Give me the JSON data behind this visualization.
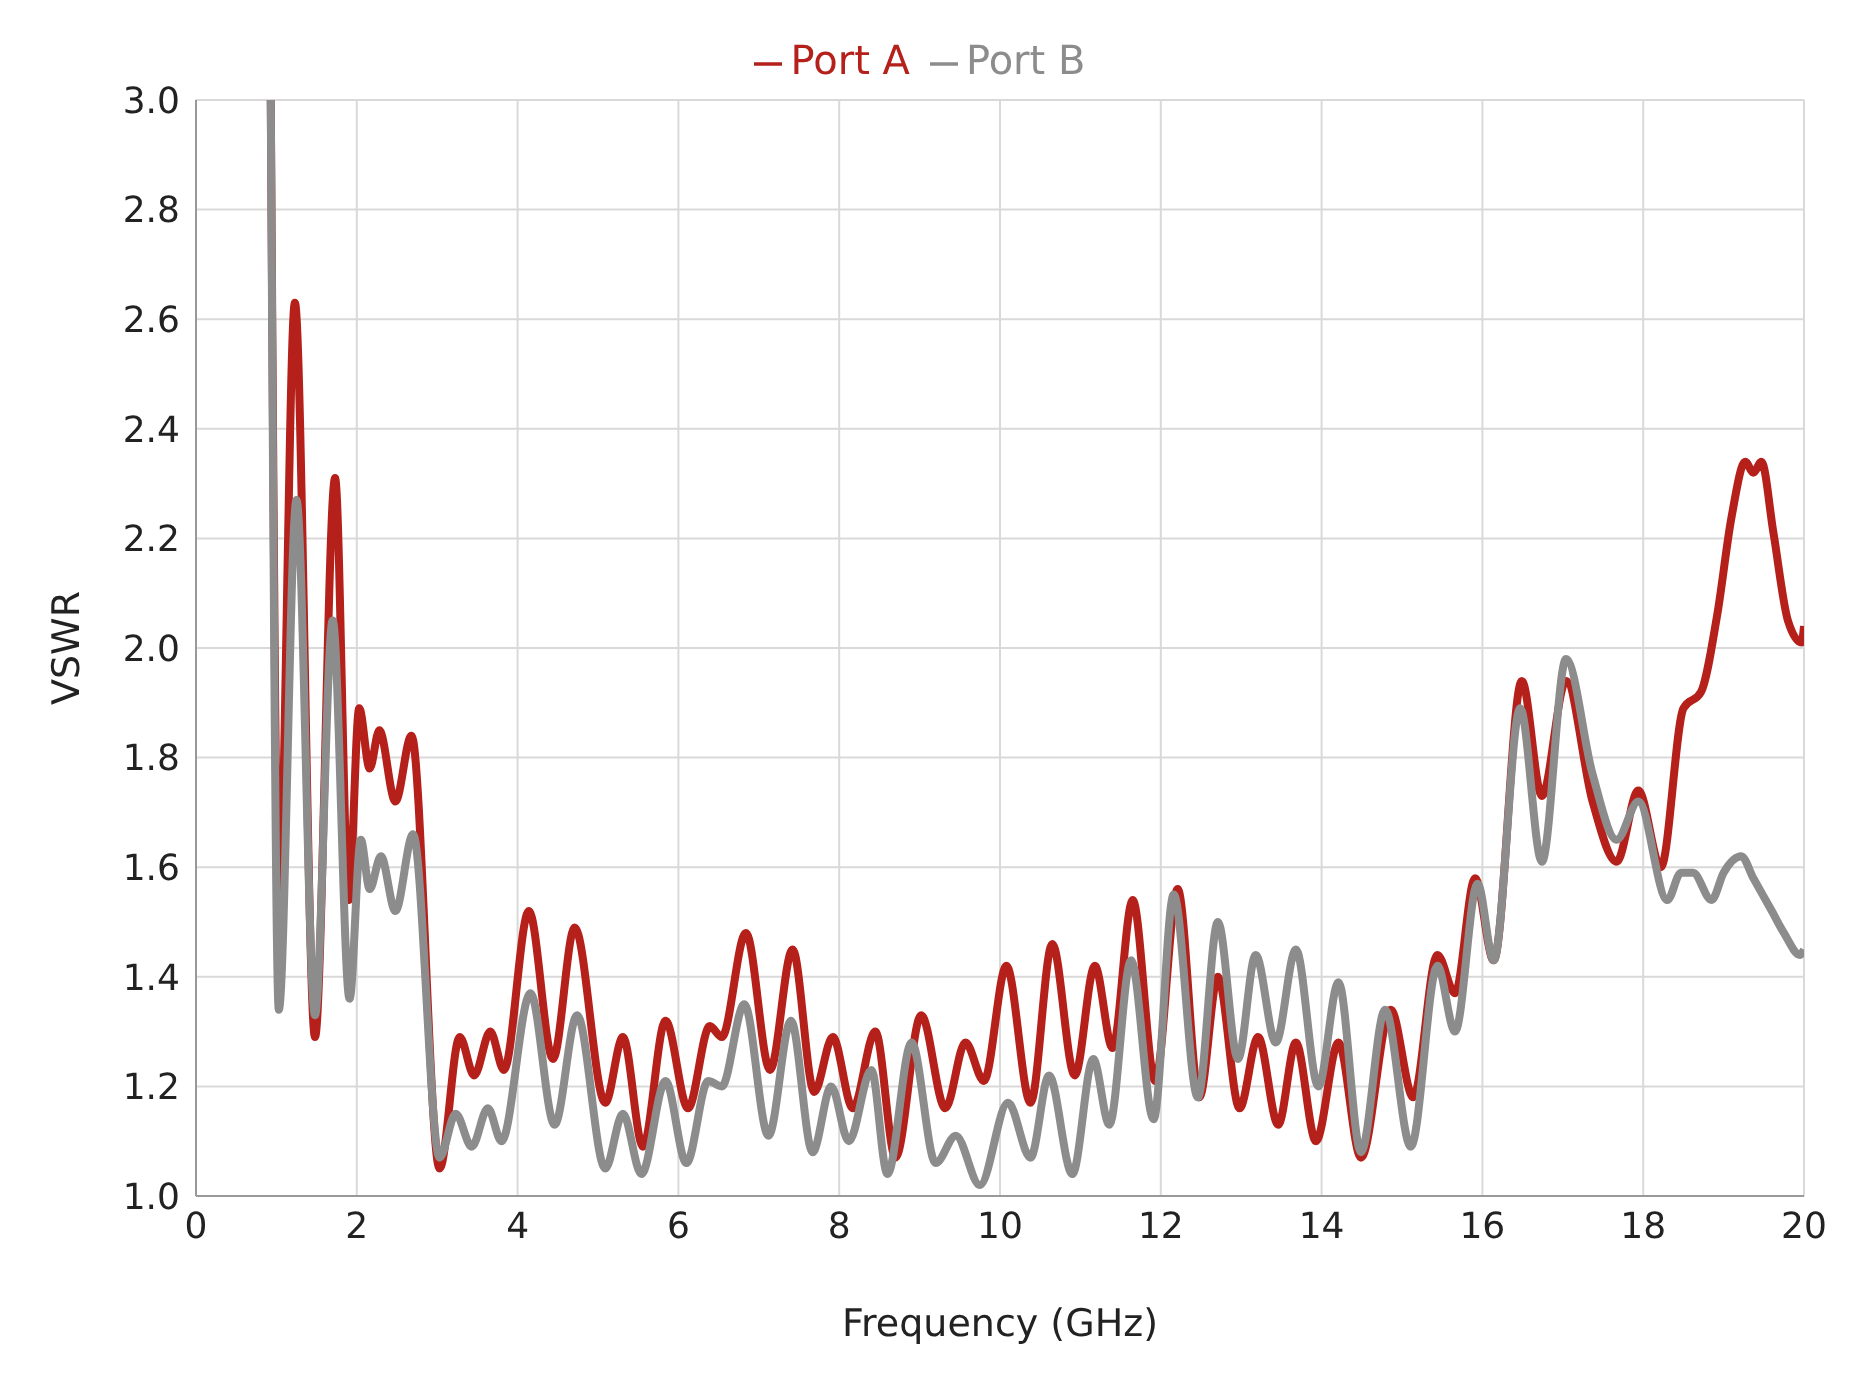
{
  "chart_data": {
    "type": "line",
    "xlabel": "Frequency (GHz)",
    "ylabel": "VSWR",
    "xlim": [
      0,
      20
    ],
    "xticks": [
      0,
      2,
      4,
      6,
      8,
      10,
      12,
      14,
      16,
      18,
      20
    ],
    "ylim": [
      1,
      3
    ],
    "yticks": [
      {
        "value": 1,
        "label": "1.0"
      },
      1.2,
      1.4,
      1.6,
      1.8,
      {
        "value": 2,
        "label": "2.0"
      },
      2.2,
      2.4,
      2.6,
      2.8,
      {
        "value": 3,
        "label": "3.0"
      }
    ],
    "grid": true,
    "legend": "top",
    "marker": "none",
    "line_style": "solid",
    "series": [
      {
        "name": "Port A",
        "color": "#b5201a",
        "x": [
          0.93,
          1.03,
          1.23,
          1.48,
          1.73,
          1.9,
          2.03,
          2.16,
          2.28,
          2.48,
          2.68,
          3.03,
          3.28,
          3.46,
          3.66,
          3.83,
          4.14,
          4.44,
          4.71,
          5.09,
          5.31,
          5.56,
          5.84,
          6.12,
          6.39,
          6.54,
          6.84,
          7.14,
          7.42,
          7.69,
          7.92,
          8.17,
          8.45,
          8.7,
          9.02,
          9.32,
          9.57,
          9.8,
          10.08,
          10.38,
          10.65,
          10.93,
          11.18,
          11.4,
          11.65,
          11.93,
          12.21,
          12.48,
          12.71,
          12.98,
          13.21,
          13.46,
          13.68,
          13.93,
          14.21,
          14.49,
          14.86,
          15.14,
          15.44,
          15.66,
          15.91,
          16.14,
          16.49,
          16.74,
          17.04,
          17.37,
          17.67,
          17.94,
          18.22,
          18.5,
          18.72,
          18.92,
          19.1,
          19.27,
          19.37,
          19.47,
          19.62,
          19.8,
          19.97,
          20
        ],
        "values": [
          3.0,
          1.52,
          2.63,
          1.29,
          2.31,
          1.54,
          1.89,
          1.78,
          1.85,
          1.72,
          1.84,
          1.05,
          1.29,
          1.22,
          1.3,
          1.23,
          1.52,
          1.25,
          1.49,
          1.17,
          1.29,
          1.09,
          1.32,
          1.16,
          1.31,
          1.29,
          1.48,
          1.23,
          1.45,
          1.19,
          1.29,
          1.16,
          1.3,
          1.07,
          1.33,
          1.16,
          1.28,
          1.21,
          1.42,
          1.17,
          1.46,
          1.22,
          1.42,
          1.27,
          1.54,
          1.21,
          1.56,
          1.18,
          1.4,
          1.16,
          1.29,
          1.13,
          1.28,
          1.1,
          1.28,
          1.07,
          1.34,
          1.18,
          1.44,
          1.37,
          1.58,
          1.43,
          1.94,
          1.73,
          1.94,
          1.72,
          1.61,
          1.74,
          1.6,
          1.89,
          1.92,
          2.06,
          2.24,
          2.34,
          2.32,
          2.34,
          2.21,
          2.05,
          2.01,
          2.04
        ]
      },
      {
        "name": "Port B",
        "color": "#8c8c8c",
        "x": [
          0.93,
          1.03,
          1.25,
          1.48,
          1.7,
          1.91,
          2.05,
          2.16,
          2.3,
          2.48,
          2.7,
          3.03,
          3.23,
          3.43,
          3.63,
          3.8,
          4.16,
          4.46,
          4.74,
          5.09,
          5.31,
          5.54,
          5.84,
          6.1,
          6.37,
          6.54,
          6.82,
          7.12,
          7.4,
          7.67,
          7.9,
          8.12,
          8.4,
          8.6,
          8.9,
          9.2,
          9.45,
          9.75,
          10.1,
          10.38,
          10.61,
          10.9,
          11.16,
          11.36,
          11.63,
          11.91,
          12.16,
          12.46,
          12.71,
          12.96,
          13.18,
          13.43,
          13.68,
          13.96,
          14.21,
          14.49,
          14.79,
          15.11,
          15.44,
          15.66,
          15.94,
          16.14,
          16.47,
          16.74,
          17.04,
          17.37,
          17.67,
          17.94,
          18.3,
          18.47,
          18.62,
          18.85,
          19.0,
          19.22,
          19.37,
          19.6,
          19.75,
          19.95,
          20
        ],
        "values": [
          3.0,
          1.34,
          2.27,
          1.33,
          2.05,
          1.36,
          1.65,
          1.56,
          1.62,
          1.52,
          1.66,
          1.07,
          1.15,
          1.09,
          1.16,
          1.1,
          1.37,
          1.13,
          1.33,
          1.05,
          1.15,
          1.04,
          1.21,
          1.06,
          1.21,
          1.2,
          1.35,
          1.11,
          1.32,
          1.08,
          1.2,
          1.1,
          1.23,
          1.04,
          1.28,
          1.06,
          1.11,
          1.02,
          1.17,
          1.07,
          1.22,
          1.04,
          1.25,
          1.13,
          1.43,
          1.14,
          1.55,
          1.18,
          1.5,
          1.25,
          1.44,
          1.28,
          1.45,
          1.2,
          1.39,
          1.08,
          1.34,
          1.09,
          1.42,
          1.3,
          1.57,
          1.43,
          1.89,
          1.61,
          1.98,
          1.77,
          1.65,
          1.72,
          1.54,
          1.59,
          1.59,
          1.54,
          1.59,
          1.62,
          1.58,
          1.52,
          1.48,
          1.44,
          1.45
        ]
      }
    ]
  }
}
